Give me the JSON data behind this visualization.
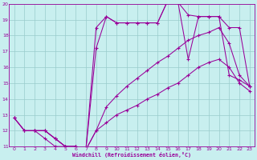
{
  "xlabel": "Windchill (Refroidissement éolien,°C)",
  "xlim": [
    -0.5,
    23.5
  ],
  "ylim": [
    11,
    20
  ],
  "xticks": [
    0,
    1,
    2,
    3,
    4,
    5,
    6,
    7,
    8,
    9,
    10,
    11,
    12,
    13,
    14,
    15,
    16,
    17,
    18,
    19,
    20,
    21,
    22,
    23
  ],
  "yticks": [
    11,
    12,
    13,
    14,
    15,
    16,
    17,
    18,
    19,
    20
  ],
  "bg_color": "#c8efef",
  "line_color": "#990099",
  "grid_color": "#99cccc",
  "line1_x": [
    0,
    1,
    2,
    3,
    4,
    5,
    6,
    7,
    8,
    9,
    10,
    11,
    12,
    13,
    14,
    15,
    16,
    17,
    18,
    19,
    20,
    21,
    22,
    23
  ],
  "line1_y": [
    12.8,
    12.0,
    12.0,
    11.5,
    11.0,
    11.0,
    11.0,
    10.8,
    12.0,
    12.5,
    13.0,
    13.3,
    13.6,
    14.0,
    14.3,
    14.7,
    15.0,
    15.5,
    16.0,
    16.3,
    16.5,
    16.0,
    15.0,
    14.5
  ],
  "line2_x": [
    0,
    1,
    2,
    3,
    4,
    5,
    6,
    7,
    8,
    9,
    10,
    11,
    12,
    13,
    14,
    15,
    16,
    17,
    18,
    19,
    20,
    21,
    22,
    23
  ],
  "line2_y": [
    12.8,
    12.0,
    12.0,
    12.0,
    11.5,
    11.0,
    11.0,
    10.8,
    12.0,
    13.5,
    14.2,
    14.8,
    15.3,
    15.8,
    16.3,
    16.7,
    17.2,
    17.7,
    18.0,
    18.2,
    18.5,
    17.5,
    15.5,
    14.8
  ],
  "line3_x": [
    0,
    1,
    2,
    3,
    4,
    5,
    6,
    7,
    8,
    9,
    10,
    11,
    12,
    13,
    14,
    15,
    16,
    17,
    18,
    19,
    20,
    21,
    22,
    23
  ],
  "line3_y": [
    12.8,
    12.0,
    12.0,
    12.0,
    11.5,
    11.0,
    11.0,
    10.8,
    17.2,
    19.2,
    18.8,
    18.8,
    18.8,
    18.8,
    18.8,
    20.2,
    20.1,
    19.3,
    19.2,
    19.2,
    19.2,
    18.5,
    18.5,
    14.8
  ],
  "line4_x": [
    2,
    3,
    4,
    5,
    6,
    7,
    8,
    9,
    10,
    11,
    12,
    13,
    14,
    15,
    16,
    17,
    18,
    19,
    20,
    21,
    22,
    23
  ],
  "line4_y": [
    12.0,
    12.0,
    11.5,
    11.0,
    11.0,
    10.8,
    18.5,
    19.2,
    18.8,
    18.8,
    18.8,
    18.8,
    18.8,
    20.2,
    20.1,
    16.5,
    19.2,
    19.2,
    19.2,
    15.5,
    15.2,
    14.8
  ]
}
